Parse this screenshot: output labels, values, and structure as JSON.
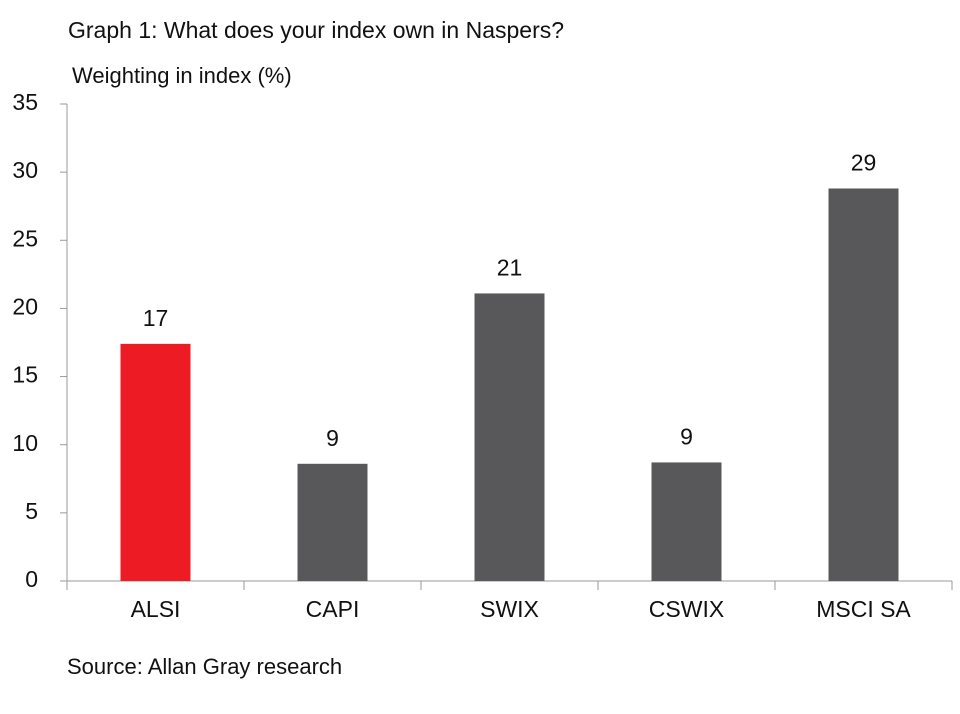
{
  "chart_data": {
    "type": "bar",
    "title": "Graph 1: What does your index own in Naspers?",
    "y_label": "Weighting in index (%)",
    "categories": [
      "ALSI",
      "CAPI",
      "SWIX",
      "CSWIX",
      "MSCI SA"
    ],
    "values": [
      17.4,
      8.6,
      21.1,
      8.7,
      28.8
    ],
    "value_labels": [
      "17",
      "9",
      "21",
      "9",
      "29"
    ],
    "colors": [
      "#ed1c24",
      "#58585a",
      "#58585a",
      "#58585a",
      "#58585a"
    ],
    "ylim": [
      0,
      35
    ],
    "yticks": [
      0,
      5,
      10,
      15,
      20,
      25,
      30,
      35
    ],
    "grid": false,
    "source": "Source: Allan Gray research"
  }
}
